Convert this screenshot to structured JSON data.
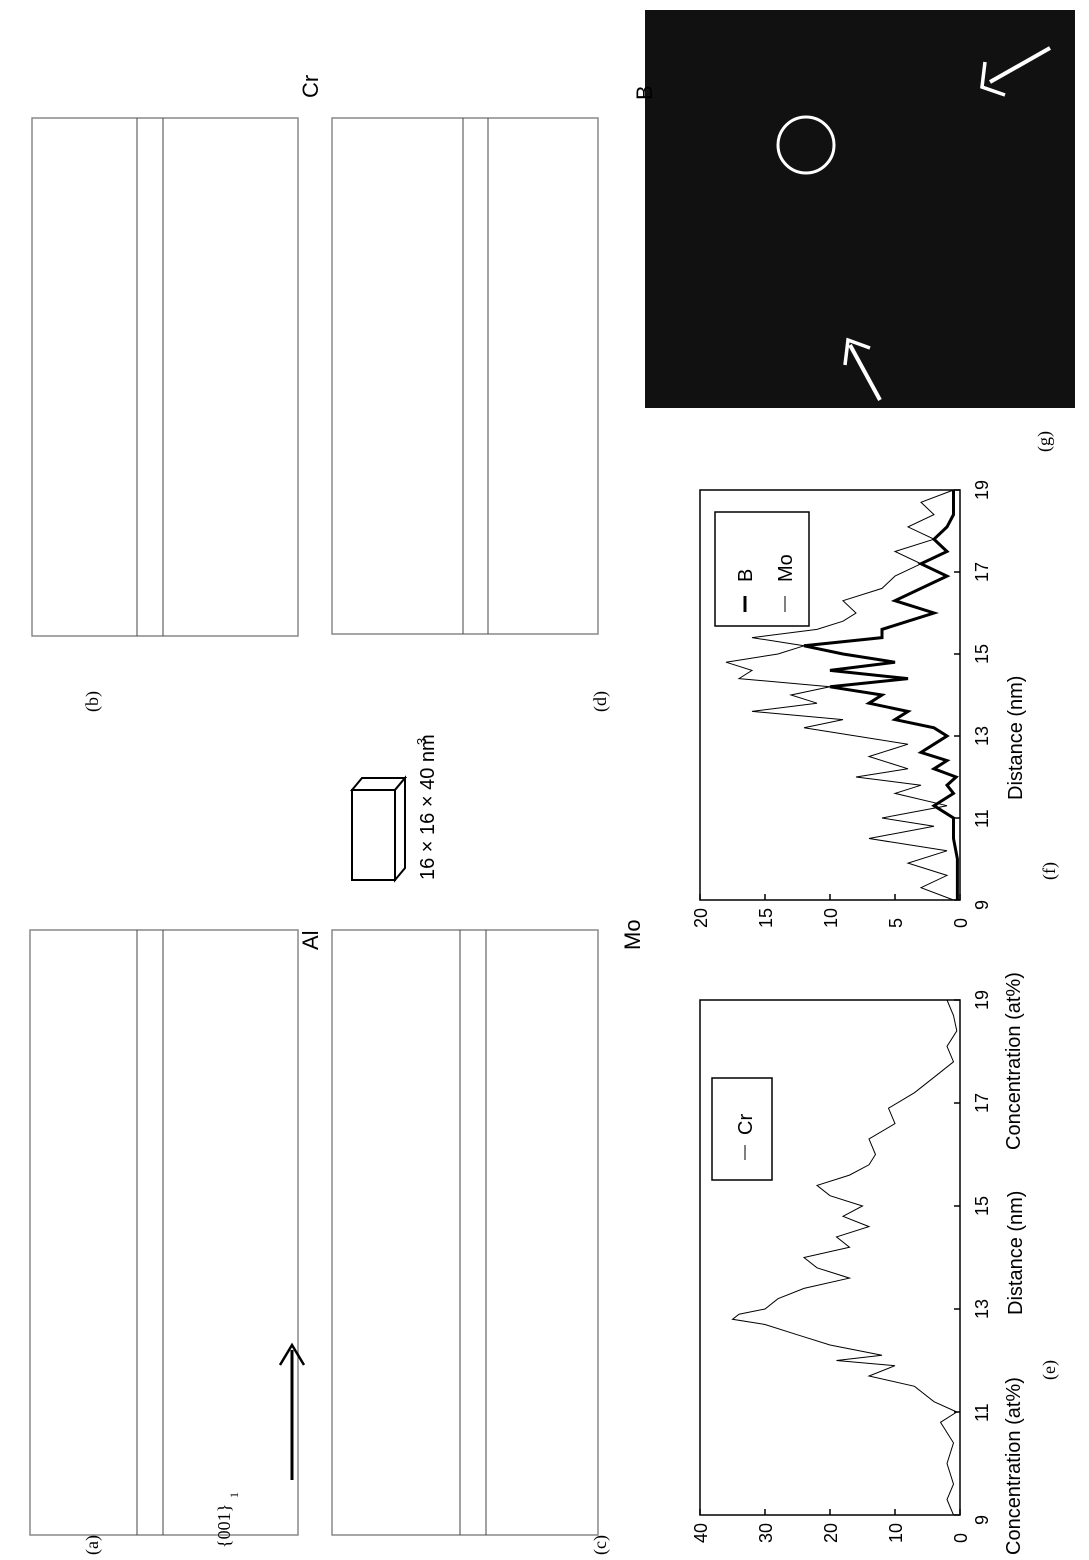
{
  "figure": {
    "panels": [
      {
        "id": "a",
        "label": "(a)",
        "element": "Al",
        "orientation": "{001}"
      },
      {
        "id": "b",
        "label": "(b)",
        "element": "Cr"
      },
      {
        "id": "c",
        "label": "(c)",
        "element": "Mo"
      },
      {
        "id": "d",
        "label": "(d)"
      },
      {
        "id": "e",
        "label": "(e)"
      },
      {
        "id": "f",
        "label": "(f)"
      },
      {
        "id": "g",
        "label": "(g)",
        "element": "B"
      }
    ],
    "box_size_label": "16 × 16 × 40 nm",
    "box_size_exponent": "3",
    "orientation_subscript": "1"
  },
  "chart_data": [
    {
      "type": "line",
      "panel": "e",
      "xlabel": "Distance (nm)",
      "ylabel": "Concentration (at%)",
      "xlim": [
        9,
        19
      ],
      "ylim": [
        0,
        40
      ],
      "xticks": [
        9,
        11,
        13,
        15,
        17,
        19
      ],
      "yticks": [
        0,
        10,
        20,
        30,
        40
      ],
      "legend": [
        "Cr"
      ],
      "series": [
        {
          "name": "Cr",
          "x": [
            9.0,
            9.3,
            9.6,
            10.0,
            10.4,
            10.8,
            11.0,
            11.2,
            11.5,
            11.7,
            11.9,
            12.0,
            12.1,
            12.3,
            12.5,
            12.7,
            12.8,
            12.9,
            13.0,
            13.2,
            13.4,
            13.6,
            13.8,
            14.0,
            14.2,
            14.4,
            14.6,
            14.8,
            15.0,
            15.2,
            15.4,
            15.6,
            15.8,
            16.0,
            16.3,
            16.6,
            16.9,
            17.2,
            17.5,
            17.8,
            18.1,
            18.4,
            18.7,
            19.0
          ],
          "y": [
            1,
            2,
            1,
            2,
            1,
            3,
            0.5,
            4,
            7,
            14,
            10,
            19,
            12,
            20,
            25,
            30,
            35,
            34,
            30,
            28,
            24,
            17,
            22,
            24,
            17,
            19,
            14,
            18,
            15,
            20,
            22,
            17,
            14,
            13,
            14,
            10,
            11,
            7,
            4,
            1,
            2,
            0.5,
            1,
            2
          ]
        }
      ]
    },
    {
      "type": "line",
      "panel": "f",
      "xlabel": "Distance (nm)",
      "ylabel": "Concentration (at%)",
      "xlim": [
        9,
        19
      ],
      "ylim": [
        0,
        20
      ],
      "xticks": [
        9,
        11,
        13,
        15,
        17,
        19
      ],
      "yticks": [
        0,
        5,
        10,
        15,
        20
      ],
      "legend": [
        "B",
        "Mo"
      ],
      "series": [
        {
          "name": "B",
          "x": [
            9.0,
            9.5,
            10.0,
            10.5,
            11.0,
            11.3,
            11.6,
            11.8,
            12.0,
            12.2,
            12.4,
            12.6,
            12.8,
            13.0,
            13.2,
            13.4,
            13.6,
            13.8,
            14.0,
            14.2,
            14.4,
            14.6,
            14.8,
            15.0,
            15.2,
            15.4,
            15.6,
            15.8,
            16.0,
            16.3,
            16.6,
            16.9,
            17.2,
            17.5,
            17.8,
            18.1,
            18.4,
            18.7,
            19.0
          ],
          "y": [
            0.2,
            0.2,
            0.2,
            0.5,
            0.5,
            2,
            0.5,
            1,
            0.3,
            2,
            1,
            3,
            2,
            1,
            2,
            5,
            4,
            7,
            6,
            10,
            4,
            10,
            5,
            9,
            12,
            6,
            6,
            4,
            2,
            5,
            3,
            1,
            3,
            1,
            2,
            1,
            0.5,
            0.5,
            0.5
          ]
        },
        {
          "name": "Mo",
          "x": [
            9.0,
            9.3,
            9.6,
            9.9,
            10.2,
            10.5,
            10.8,
            11.0,
            11.3,
            11.6,
            11.8,
            12.0,
            12.2,
            12.5,
            12.8,
            13.0,
            13.2,
            13.4,
            13.6,
            13.8,
            14.0,
            14.2,
            14.4,
            14.6,
            14.8,
            15.0,
            15.2,
            15.4,
            15.6,
            15.8,
            16.0,
            16.3,
            16.6,
            16.9,
            17.2,
            17.5,
            17.8,
            18.1,
            18.4,
            18.7,
            19.0
          ],
          "y": [
            0.5,
            3,
            1,
            4,
            1,
            7,
            2,
            6,
            1,
            5,
            3,
            8,
            4,
            7,
            4,
            8,
            12,
            9,
            16,
            11,
            13,
            10,
            17,
            16,
            18,
            14,
            12,
            16,
            11,
            9,
            8,
            9,
            6,
            5,
            3,
            5,
            2,
            4,
            2,
            3,
            0.5
          ]
        }
      ]
    }
  ]
}
